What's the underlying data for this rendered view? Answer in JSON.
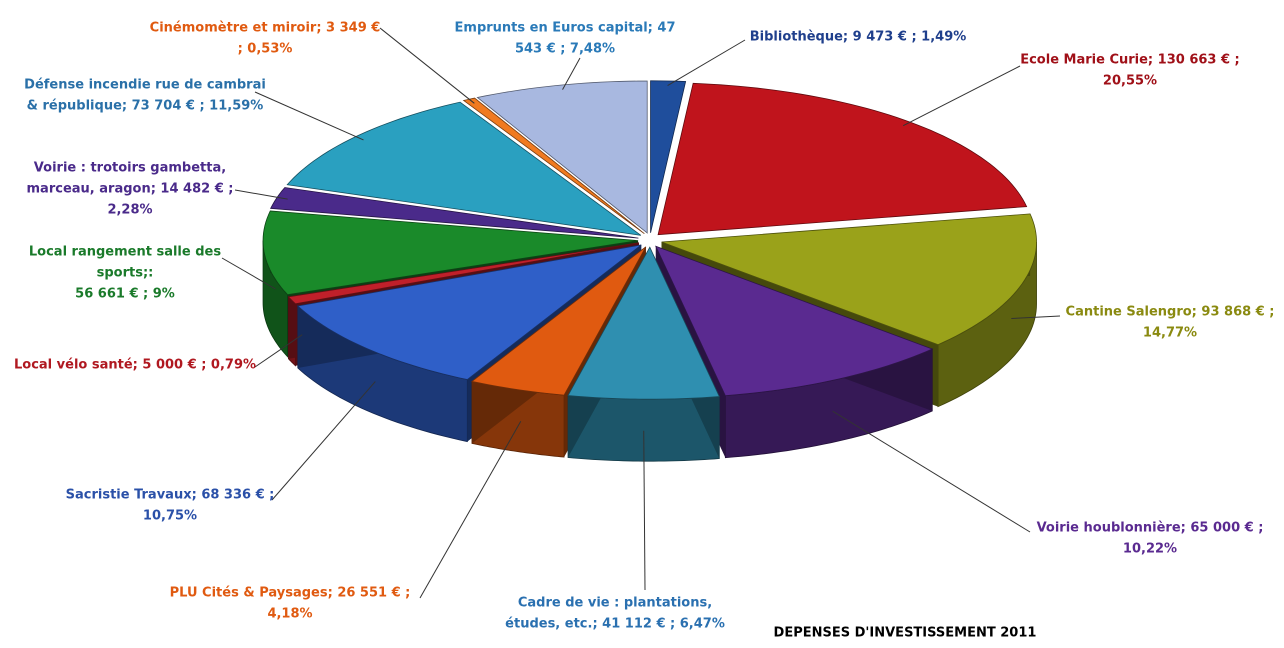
{
  "chart_data": {
    "type": "pie",
    "title": "DEPENSES D'INVESTISSEMENT 2011",
    "categories": [
      "Bibliothèque",
      "Ecole Marie Curie",
      "Cantine Salengro",
      "Voirie houblonnière",
      "Cadre de vie : plantations, études, etc.",
      "PLU Cités & Paysages",
      "Sacristie  Travaux",
      "Local vélo santé",
      "Local rangement salle des sports;:",
      "Voirie : trotoirs gambetta, marceau, aragon",
      "Défense incendie rue de cambrai & république",
      "Cinémomètre et miroir",
      "Emprunts en Euros capital"
    ],
    "values": [
      9473,
      130663,
      93868,
      65000,
      41112,
      26551,
      68336,
      5000,
      56661,
      14482,
      73704,
      3349,
      47543
    ],
    "labels": [
      [
        "Bibliothèque;  9 473 € ; 1,49%"
      ],
      [
        "Ecole Marie Curie;  130 663 € ;",
        "20,55%"
      ],
      [
        "Cantine Salengro;  93 868 € ;",
        "14,77%"
      ],
      [
        "Voirie houblonnière;  65 000 € ;",
        "10,22%"
      ],
      [
        "Cadre de vie : plantations,",
        "études, etc.;  41 112 € ; 6,47%"
      ],
      [
        "PLU Cités & Paysages;  26 551 € ;",
        "4,18%"
      ],
      [
        "Sacristie  Travaux;  68 336 € ;",
        "10,75%"
      ],
      [
        "Local vélo santé;  5 000 € ; 0,79%"
      ],
      [
        "Local rangement salle des",
        "sports;:",
        "56 661 € ; 9%"
      ],
      [
        "Voirie : trotoirs gambetta,",
        "marceau, aragon;  14 482 € ;",
        "2,28%"
      ],
      [
        "Défense incendie rue de cambrai",
        "& république;  73 704 € ; 11,59%"
      ],
      [
        "Cinémomètre et miroir;  3 349 €",
        "; 0,53%"
      ],
      [
        "Emprunts en Euros capital;  47",
        "543 € ; 7,48%"
      ]
    ],
    "colors": [
      "#1f4e9c",
      "#c0141c",
      "#9aa21a",
      "#5a2a90",
      "#2f8fb0",
      "#e05a10",
      "#2f5fc8",
      "#c0202a",
      "#1a8a2a",
      "#4a2a8a",
      "#2aa0c0",
      "#f07a20",
      "#a8b8e0"
    ],
    "label_colors": [
      "#1f3f8c",
      "#a01018",
      "#8a8a10",
      "#5a2a90",
      "#2a70b0",
      "#e05a10",
      "#2a50a8",
      "#b01820",
      "#1a7a2a",
      "#4a2a8a",
      "#2a70a8",
      "#e05a10",
      "#2a7ab8"
    ]
  }
}
